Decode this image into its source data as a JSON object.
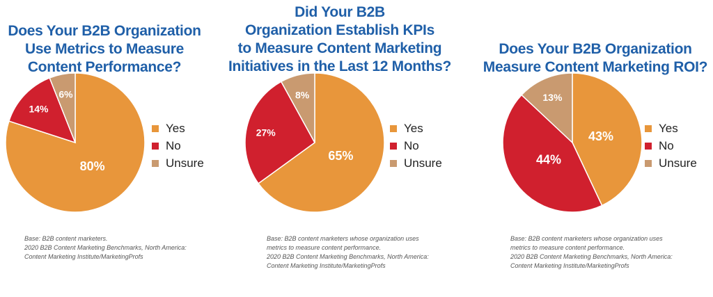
{
  "colors": {
    "Yes": "#e8963b",
    "No": "#d0202e",
    "Unsure": "#c99a70",
    "title": "#1f5fa8"
  },
  "chart_data": [
    {
      "type": "pie",
      "title": [
        "Does Your B2B Organization",
        "Use Metrics to Measure",
        "Content Performance?"
      ],
      "categories": [
        "Yes",
        "No",
        "Unsure"
      ],
      "values": [
        80,
        14,
        6
      ],
      "labels": [
        "80%",
        "14%",
        "6%"
      ],
      "legend": "right",
      "footnote": [
        "Base: B2B content marketers.",
        "2020 B2B Content Marketing Benchmarks, North America:",
        "Content Marketing Institute/MarketingProfs"
      ]
    },
    {
      "type": "pie",
      "title": [
        "Did Your B2B",
        "Organization Establish KPIs",
        "to Measure Content Marketing",
        "Initiatives in the Last 12 Months?"
      ],
      "categories": [
        "Yes",
        "No",
        "Unsure"
      ],
      "values": [
        65,
        27,
        8
      ],
      "labels": [
        "65%",
        "27%",
        "8%"
      ],
      "legend": "right",
      "footnote": [
        "Base: B2B content marketers whose organization uses",
        "metrics to measure content performance.",
        "2020 B2B Content Marketing Benchmarks, North America:",
        "Content Marketing Institute/MarketingProfs"
      ]
    },
    {
      "type": "pie",
      "title": [
        "Does Your B2B Organization",
        "Measure Content Marketing ROI?"
      ],
      "categories": [
        "Yes",
        "No",
        "Unsure"
      ],
      "values": [
        43,
        44,
        13
      ],
      "labels": [
        "43%",
        "44%",
        "13%"
      ],
      "legend": "right",
      "footnote": [
        "Base: B2B content marketers whose organization uses",
        "metrics to measure content performance.",
        "2020 B2B Content Marketing Benchmarks, North America:",
        "Content Marketing Institute/MarketingProfs"
      ]
    }
  ]
}
